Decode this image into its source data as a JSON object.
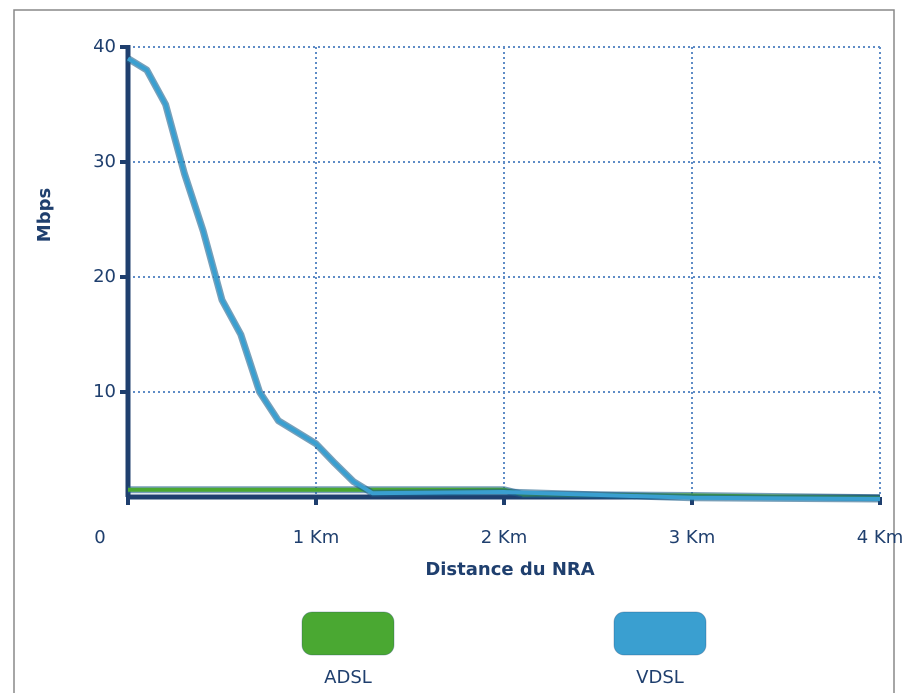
{
  "chart_data": {
    "type": "line",
    "y_label": "Mbps",
    "x_label": "Distance du NRA",
    "xlim": [
      0,
      4
    ],
    "ylim": [
      0,
      40
    ],
    "xticks": [
      0,
      {
        "value": 1,
        "label": "1 Km"
      },
      {
        "value": 2,
        "label": "2 Km"
      },
      {
        "value": 3,
        "label": "3 Km"
      },
      {
        "value": 4,
        "label": "4 Km"
      }
    ],
    "yticks": [
      10,
      20,
      30,
      40
    ],
    "grid": true,
    "series": [
      {
        "name": "ADSL",
        "color": "#4aa832",
        "x": [
          0,
          1,
          2,
          2.1,
          3,
          4
        ],
        "values": [
          1.5,
          1.5,
          1.5,
          1.1,
          1.0,
          0.8
        ]
      },
      {
        "name": "VDSL",
        "color": "#3a9fd0",
        "x": [
          0,
          0.1,
          0.2,
          0.3,
          0.4,
          0.5,
          0.6,
          0.7,
          0.8,
          0.9,
          1.0,
          1.1,
          1.2,
          1.3,
          2,
          3,
          4
        ],
        "values": [
          39,
          38,
          35,
          29,
          24,
          18,
          15,
          10,
          7.5,
          6.5,
          5.5,
          3.8,
          2.2,
          1.2,
          1.3,
          0.8,
          0.7
        ]
      }
    ]
  }
}
